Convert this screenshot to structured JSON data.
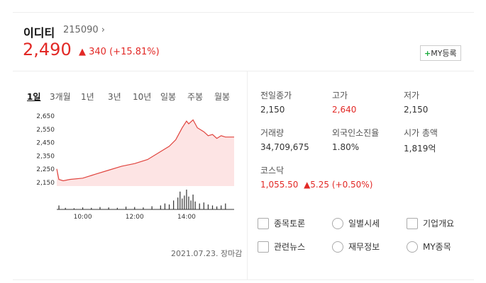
{
  "header": {
    "name": "이디티",
    "code": "215090",
    "price": "2,490",
    "change": "340",
    "change_rate": "(+15.81%)",
    "button": "MY등록"
  },
  "tabs": [
    "1일",
    "3개월",
    "1년",
    "3년",
    "10년",
    "일봉",
    "주봉",
    "월봉"
  ],
  "active_tab": 0,
  "chart_data": [
    {
      "type": "line",
      "color": "#e0443e",
      "fill": "#fde4e4",
      "x": [
        "09:00",
        "09:05",
        "09:15",
        "09:30",
        "10:00",
        "10:30",
        "11:00",
        "11:30",
        "12:00",
        "12:30",
        "13:00",
        "13:20",
        "13:35",
        "13:50",
        "14:00",
        "14:05",
        "14:15",
        "14:25",
        "14:40",
        "14:50",
        "15:00",
        "15:10",
        "15:20",
        "15:30",
        "15:50"
      ],
      "values": [
        2250,
        2170,
        2160,
        2170,
        2180,
        2210,
        2240,
        2270,
        2290,
        2320,
        2380,
        2420,
        2470,
        2560,
        2610,
        2590,
        2620,
        2560,
        2530,
        2500,
        2510,
        2480,
        2500,
        2490,
        2490
      ],
      "xlim": [
        "09:00",
        "15:50"
      ],
      "ylim": [
        2120,
        2670
      ],
      "yticks": [
        {
          "value": 2150,
          "label": "2,150"
        },
        {
          "value": 2250,
          "label": "2,250"
        },
        {
          "value": 2350,
          "label": "2,350"
        },
        {
          "value": 2450,
          "label": "2,450"
        },
        {
          "value": 2550,
          "label": "2,550"
        },
        {
          "value": 2650,
          "label": "2,650"
        }
      ],
      "xticks": [
        "10:00",
        "12:00",
        "14:00"
      ]
    },
    {
      "type": "bar",
      "color": "#333333",
      "x": [
        "09:05",
        "09:20",
        "09:40",
        "10:00",
        "10:20",
        "10:40",
        "11:00",
        "11:20",
        "11:40",
        "12:00",
        "12:20",
        "12:40",
        "13:00",
        "13:10",
        "13:20",
        "13:30",
        "13:40",
        "13:45",
        "13:50",
        "13:55",
        "14:00",
        "14:05",
        "14:10",
        "14:15",
        "14:20",
        "14:30",
        "14:40",
        "14:50",
        "15:00",
        "15:10",
        "15:20",
        "15:30"
      ],
      "values": [
        20,
        8,
        6,
        10,
        8,
        12,
        10,
        8,
        14,
        12,
        10,
        16,
        20,
        30,
        25,
        45,
        60,
        90,
        55,
        70,
        100,
        65,
        45,
        75,
        40,
        30,
        35,
        25,
        20,
        15,
        20,
        30
      ],
      "xlim": [
        "09:00",
        "15:50"
      ],
      "ylim": [
        0,
        100
      ]
    }
  ],
  "stats": [
    {
      "label": "전일종가",
      "value": "2,150"
    },
    {
      "label": "고가",
      "value": "2,640",
      "color": "#e22926"
    },
    {
      "label": "저가",
      "value": "2,150"
    },
    {
      "label": "거래량",
      "value": "34,709,675"
    },
    {
      "label": "외국인소진율",
      "value": "1.80%"
    },
    {
      "label": "시가 총액",
      "value": "1,819억"
    }
  ],
  "index": {
    "name": "코스닥",
    "value": "1,055.50",
    "change": "5.25",
    "change_rate": "(+0.50%)",
    "color": "#e22926"
  },
  "links": [
    "종목토론",
    "일별시세",
    "기업개요",
    "관련뉴스",
    "재무정보",
    "MY종목"
  ],
  "footer": "2021.07.23. 장마감"
}
